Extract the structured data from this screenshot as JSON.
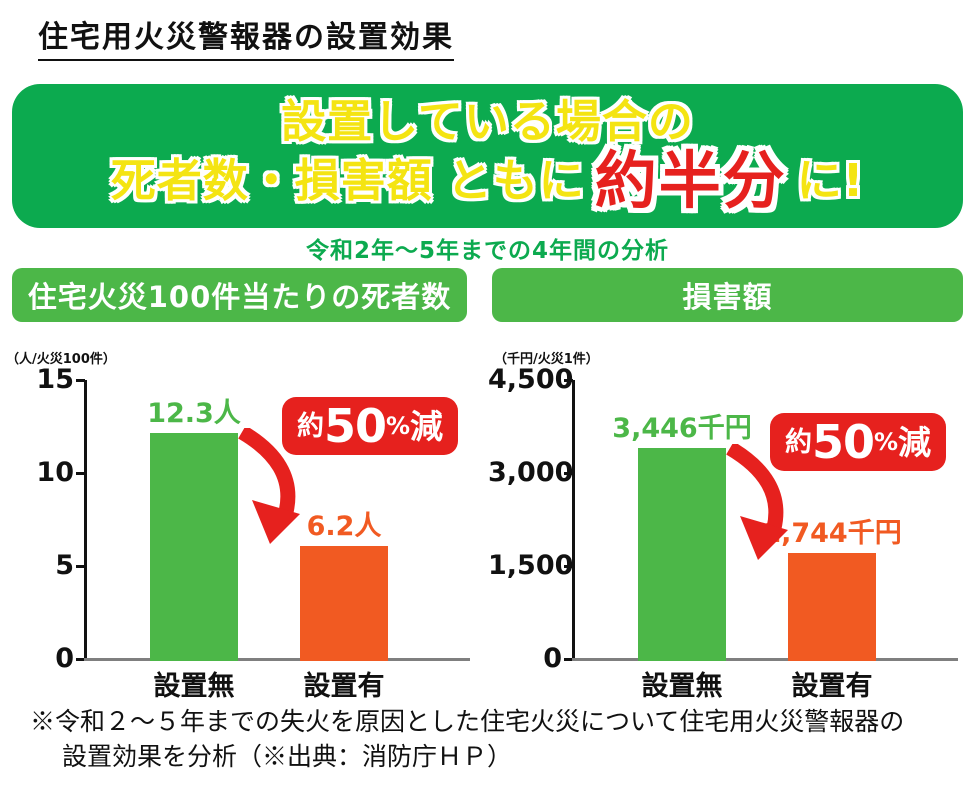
{
  "page": {
    "title": "住宅用火災警報器の設置効果",
    "note_line1": "※令和２～５年までの失火を原因とした住宅火災について住宅用火災警報器の",
    "note_line2": "設置効果を分析（※出典：消防庁ＨＰ）"
  },
  "banner": {
    "line1": "設置している場合の",
    "line2_part1": "死者数・損害額",
    "line2_part2": "ともに",
    "line2_highlight": "約半分",
    "line2_suffix": "に!",
    "subtitle": "令和2年～5年までの4年間の分析",
    "bg_color": "#0caa4f",
    "text_color": "#f4e412",
    "highlight_color": "#e6211e"
  },
  "badge": {
    "prefix": "約",
    "number": "50",
    "percent": "%",
    "suffix": "減",
    "bg_color": "#e6211e"
  },
  "colors": {
    "banner_green": "#0caa4f",
    "header_green": "#4cb748",
    "bar_green": "#4cb748",
    "bar_orange": "#f15a22",
    "badge_red": "#e6211e",
    "axis_black": "#111111",
    "baseline_gray": "#7f7f7f"
  },
  "chart_data": [
    {
      "type": "bar",
      "title": "住宅火災100件当たりの死者数",
      "unit": "（人/火災100件）",
      "categories": [
        "設置無",
        "設置有"
      ],
      "values": [
        12.3,
        6.2
      ],
      "value_labels": [
        "12.3人",
        "6.2人"
      ],
      "yticks": [
        "15",
        "10",
        "5",
        "0"
      ],
      "ytick_values": [
        15,
        10,
        5,
        0
      ],
      "ylim": [
        0,
        15
      ],
      "bar_colors": [
        "#4cb748",
        "#f15a22"
      ],
      "annotation": "約50%減",
      "legend": "none",
      "grid": "off"
    },
    {
      "type": "bar",
      "title": "損害額",
      "unit": "（千円/火災1件）",
      "categories": [
        "設置無",
        "設置有"
      ],
      "values": [
        3446,
        1744
      ],
      "value_labels": [
        "3,446千円",
        "1,744千円"
      ],
      "yticks": [
        "4,500",
        "3,000",
        "1,500",
        "0"
      ],
      "ytick_values": [
        4500,
        3000,
        1500,
        0
      ],
      "ylim": [
        0,
        4500
      ],
      "bar_colors": [
        "#4cb748",
        "#f15a22"
      ],
      "annotation": "約50%減",
      "legend": "none",
      "grid": "off"
    }
  ]
}
